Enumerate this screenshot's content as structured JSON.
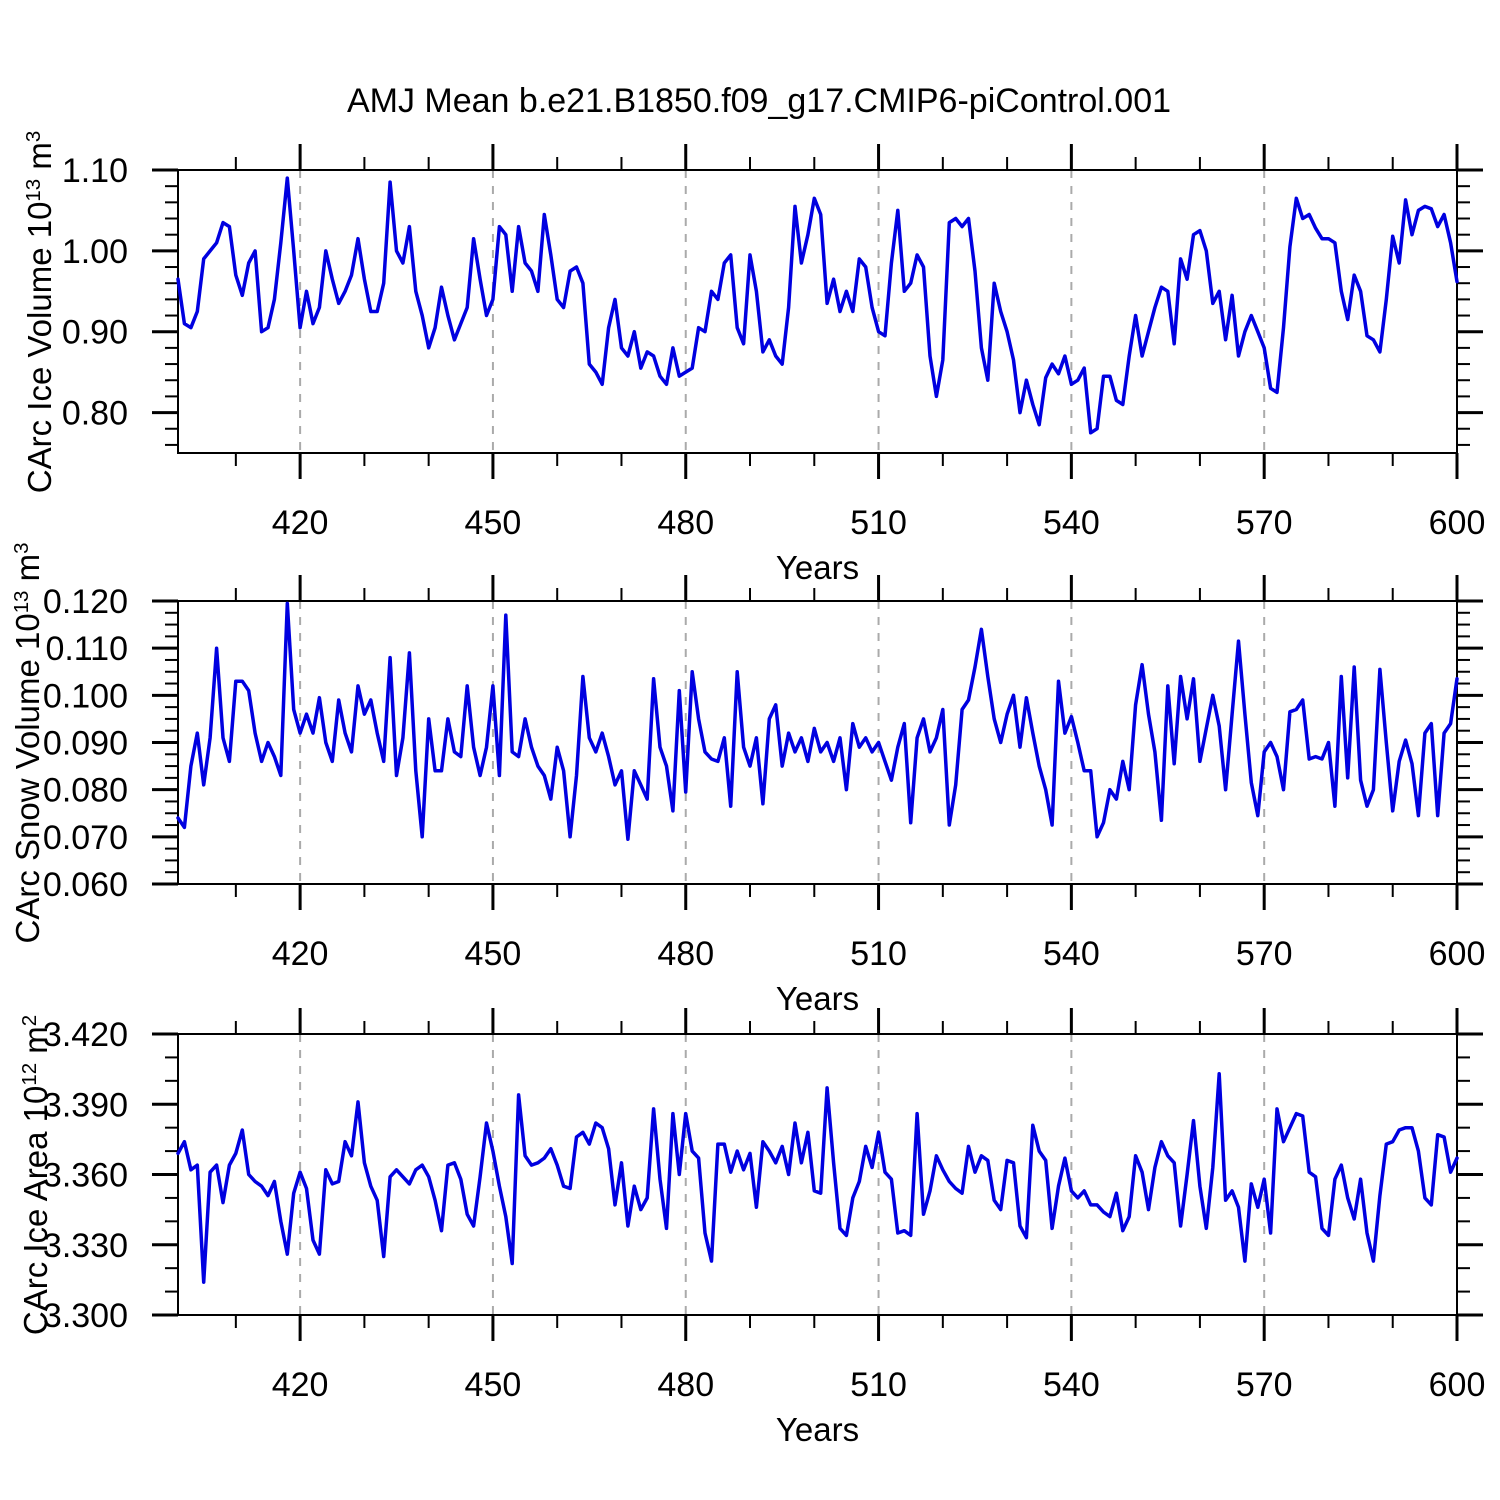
{
  "title": "AMJ Mean b.e21.B1850.f09_g17.CMIP6-piControl.001",
  "colors": {
    "line": "#0000e0",
    "axis": "#000000",
    "gridline": "#aaaaaa",
    "background": "#ffffff"
  },
  "years": [
    401,
    402,
    403,
    404,
    405,
    406,
    407,
    408,
    409,
    410,
    411,
    412,
    413,
    414,
    415,
    416,
    417,
    418,
    419,
    420,
    421,
    422,
    423,
    424,
    425,
    426,
    427,
    428,
    429,
    430,
    431,
    432,
    433,
    434,
    435,
    436,
    437,
    438,
    439,
    440,
    441,
    442,
    443,
    444,
    445,
    446,
    447,
    448,
    449,
    450,
    451,
    452,
    453,
    454,
    455,
    456,
    457,
    458,
    459,
    460,
    461,
    462,
    463,
    464,
    465,
    466,
    467,
    468,
    469,
    470,
    471,
    472,
    473,
    474,
    475,
    476,
    477,
    478,
    479,
    480,
    481,
    482,
    483,
    484,
    485,
    486,
    487,
    488,
    489,
    490,
    491,
    492,
    493,
    494,
    495,
    496,
    497,
    498,
    499,
    500,
    501,
    502,
    503,
    504,
    505,
    506,
    507,
    508,
    509,
    510,
    511,
    512,
    513,
    514,
    515,
    516,
    517,
    518,
    519,
    520,
    521,
    522,
    523,
    524,
    525,
    526,
    527,
    528,
    529,
    530,
    531,
    532,
    533,
    534,
    535,
    536,
    537,
    538,
    539,
    540,
    541,
    542,
    543,
    544,
    545,
    546,
    547,
    548,
    549,
    550,
    551,
    552,
    553,
    554,
    555,
    556,
    557,
    558,
    559,
    560,
    561,
    562,
    563,
    564,
    565,
    566,
    567,
    568,
    569,
    570,
    571,
    572,
    573,
    574,
    575,
    576,
    577,
    578,
    579,
    580,
    581,
    582,
    583,
    584,
    585,
    586,
    587,
    588,
    589,
    590,
    591,
    592,
    593,
    594,
    595,
    596,
    597,
    598,
    599,
    600
  ],
  "chart_data": [
    {
      "name": "carc-ice-volume",
      "type": "line",
      "xlabel": "Years",
      "ylabel": {
        "prefix": "CArc Ice Volume 10",
        "exp": "13",
        "unit": " m",
        "unit_exp": "3"
      },
      "xlim": [
        401,
        600
      ],
      "ylim": [
        0.75,
        1.1
      ],
      "xticks_major": [
        420,
        450,
        480,
        510,
        540,
        570,
        600
      ],
      "xminor_step": 10,
      "yticks_major": [
        0.8,
        0.9,
        1.0,
        1.1
      ],
      "ytick_labels": [
        "0.80",
        "0.90",
        "1.00",
        "1.10"
      ],
      "yminor_step": 0.02,
      "gridlines_x": [
        420,
        450,
        480,
        510,
        540,
        570
      ],
      "grid": "dashed-vertical",
      "legend": "none",
      "values": [
        0.965,
        0.91,
        0.905,
        0.925,
        0.99,
        1.0,
        1.01,
        1.035,
        1.03,
        0.97,
        0.945,
        0.985,
        1.0,
        0.9,
        0.905,
        0.94,
        1.01,
        1.09,
        1.0,
        0.905,
        0.95,
        0.91,
        0.93,
        1.0,
        0.965,
        0.935,
        0.95,
        0.97,
        1.015,
        0.965,
        0.925,
        0.925,
        0.96,
        1.085,
        1.0,
        0.985,
        1.03,
        0.95,
        0.92,
        0.88,
        0.905,
        0.955,
        0.92,
        0.89,
        0.91,
        0.93,
        1.015,
        0.965,
        0.92,
        0.94,
        1.03,
        1.02,
        0.95,
        1.03,
        0.985,
        0.975,
        0.95,
        1.045,
        0.995,
        0.94,
        0.93,
        0.975,
        0.98,
        0.96,
        0.86,
        0.85,
        0.835,
        0.905,
        0.94,
        0.88,
        0.87,
        0.9,
        0.855,
        0.875,
        0.87,
        0.845,
        0.835,
        0.88,
        0.845,
        0.85,
        0.855,
        0.905,
        0.9,
        0.95,
        0.94,
        0.985,
        0.995,
        0.905,
        0.885,
        0.995,
        0.95,
        0.875,
        0.89,
        0.87,
        0.86,
        0.93,
        1.055,
        0.985,
        1.02,
        1.065,
        1.045,
        0.935,
        0.965,
        0.925,
        0.95,
        0.925,
        0.99,
        0.98,
        0.93,
        0.9,
        0.895,
        0.985,
        1.05,
        0.95,
        0.96,
        0.995,
        0.98,
        0.87,
        0.82,
        0.865,
        1.035,
        1.04,
        1.03,
        1.04,
        0.975,
        0.88,
        0.84,
        0.96,
        0.925,
        0.9,
        0.865,
        0.8,
        0.84,
        0.81,
        0.785,
        0.843,
        0.86,
        0.848,
        0.87,
        0.835,
        0.84,
        0.855,
        0.775,
        0.78,
        0.845,
        0.845,
        0.815,
        0.81,
        0.87,
        0.92,
        0.87,
        0.9,
        0.93,
        0.955,
        0.95,
        0.885,
        0.99,
        0.965,
        1.02,
        1.025,
        1.0,
        0.935,
        0.95,
        0.89,
        0.945,
        0.87,
        0.9,
        0.92,
        0.9,
        0.88,
        0.83,
        0.825,
        0.905,
        1.005,
        1.065,
        1.04,
        1.045,
        1.028,
        1.015,
        1.015,
        1.01,
        0.95,
        0.915,
        0.97,
        0.95,
        0.895,
        0.89,
        0.875,
        0.94,
        1.018,
        0.985,
        1.063,
        1.02,
        1.05,
        1.055,
        1.052,
        1.03,
        1.045,
        1.01,
        0.962
      ]
    },
    {
      "name": "carc-snow-volume",
      "type": "line",
      "xlabel": "Years",
      "ylabel": {
        "prefix": "CArc Snow Volume 10",
        "exp": "13",
        "unit": " m",
        "unit_exp": "3"
      },
      "xlim": [
        401,
        600
      ],
      "ylim": [
        0.06,
        0.12
      ],
      "xticks_major": [
        420,
        450,
        480,
        510,
        540,
        570,
        600
      ],
      "xminor_step": 10,
      "yticks_major": [
        0.06,
        0.07,
        0.08,
        0.09,
        0.1,
        0.11,
        0.12
      ],
      "ytick_labels": [
        "0.060",
        "0.070",
        "0.080",
        "0.090",
        "0.100",
        "0.110",
        "0.120"
      ],
      "yminor_step": 0.0025,
      "gridlines_x": [
        420,
        450,
        480,
        510,
        540,
        570
      ],
      "grid": "dashed-vertical",
      "legend": "none",
      "values": [
        0.074,
        0.072,
        0.085,
        0.092,
        0.081,
        0.091,
        0.11,
        0.091,
        0.086,
        0.103,
        0.103,
        0.101,
        0.092,
        0.086,
        0.09,
        0.087,
        0.083,
        0.1195,
        0.097,
        0.092,
        0.096,
        0.092,
        0.0995,
        0.09,
        0.086,
        0.099,
        0.092,
        0.088,
        0.102,
        0.096,
        0.099,
        0.092,
        0.086,
        0.108,
        0.083,
        0.091,
        0.109,
        0.084,
        0.07,
        0.095,
        0.084,
        0.084,
        0.095,
        0.088,
        0.087,
        0.102,
        0.089,
        0.083,
        0.089,
        0.102,
        0.083,
        0.117,
        0.088,
        0.087,
        0.095,
        0.089,
        0.085,
        0.083,
        0.078,
        0.089,
        0.084,
        0.07,
        0.083,
        0.104,
        0.091,
        0.088,
        0.092,
        0.087,
        0.081,
        0.084,
        0.0695,
        0.084,
        0.081,
        0.078,
        0.1035,
        0.089,
        0.085,
        0.0755,
        0.101,
        0.0795,
        0.105,
        0.095,
        0.088,
        0.0865,
        0.086,
        0.091,
        0.0765,
        0.105,
        0.089,
        0.085,
        0.091,
        0.077,
        0.095,
        0.098,
        0.085,
        0.092,
        0.088,
        0.091,
        0.086,
        0.093,
        0.088,
        0.09,
        0.086,
        0.091,
        0.08,
        0.094,
        0.089,
        0.091,
        0.088,
        0.09,
        0.086,
        0.082,
        0.089,
        0.094,
        0.073,
        0.091,
        0.095,
        0.088,
        0.091,
        0.097,
        0.0725,
        0.081,
        0.097,
        0.099,
        0.106,
        0.114,
        0.104,
        0.095,
        0.09,
        0.096,
        0.1,
        0.089,
        0.0995,
        0.092,
        0.085,
        0.08,
        0.0725,
        0.103,
        0.092,
        0.0955,
        0.09,
        0.084,
        0.084,
        0.07,
        0.073,
        0.08,
        0.078,
        0.086,
        0.08,
        0.098,
        0.1065,
        0.096,
        0.088,
        0.0735,
        0.102,
        0.0855,
        0.104,
        0.095,
        0.1035,
        0.086,
        0.093,
        0.1,
        0.0935,
        0.08,
        0.096,
        0.1115,
        0.096,
        0.0815,
        0.0745,
        0.088,
        0.09,
        0.087,
        0.08,
        0.0965,
        0.097,
        0.099,
        0.0865,
        0.087,
        0.0865,
        0.09,
        0.0765,
        0.104,
        0.0825,
        0.106,
        0.082,
        0.0765,
        0.08,
        0.1055,
        0.09,
        0.0755,
        0.086,
        0.0905,
        0.0855,
        0.0745,
        0.092,
        0.094,
        0.0745,
        0.092,
        0.094,
        0.1035
      ]
    },
    {
      "name": "carc-ice-area",
      "type": "line",
      "xlabel": "Years",
      "ylabel": {
        "prefix": "CArc Ice Area 10",
        "exp": "12",
        "unit": " m",
        "unit_exp": "2"
      },
      "xlim": [
        401,
        600
      ],
      "ylim": [
        3.3,
        3.42
      ],
      "xticks_major": [
        420,
        450,
        480,
        510,
        540,
        570,
        600
      ],
      "xminor_step": 10,
      "yticks_major": [
        3.3,
        3.33,
        3.36,
        3.39,
        3.42
      ],
      "ytick_labels": [
        "3.300",
        "3.330",
        "3.360",
        "3.390",
        "3.420"
      ],
      "yminor_step": 0.01,
      "gridlines_x": [
        420,
        450,
        480,
        510,
        540,
        570
      ],
      "grid": "dashed-vertical",
      "legend": "none",
      "values": [
        3.369,
        3.374,
        3.362,
        3.364,
        3.314,
        3.361,
        3.364,
        3.348,
        3.364,
        3.369,
        3.379,
        3.36,
        3.357,
        3.355,
        3.351,
        3.357,
        3.34,
        3.326,
        3.352,
        3.361,
        3.354,
        3.332,
        3.326,
        3.362,
        3.356,
        3.357,
        3.374,
        3.368,
        3.391,
        3.365,
        3.355,
        3.349,
        3.325,
        3.359,
        3.362,
        3.359,
        3.356,
        3.362,
        3.364,
        3.359,
        3.349,
        3.336,
        3.364,
        3.365,
        3.358,
        3.343,
        3.338,
        3.359,
        3.382,
        3.37,
        3.355,
        3.342,
        3.322,
        3.394,
        3.368,
        3.364,
        3.365,
        3.367,
        3.371,
        3.364,
        3.355,
        3.354,
        3.376,
        3.378,
        3.373,
        3.382,
        3.38,
        3.371,
        3.347,
        3.365,
        3.338,
        3.355,
        3.345,
        3.35,
        3.388,
        3.358,
        3.337,
        3.386,
        3.36,
        3.386,
        3.37,
        3.367,
        3.335,
        3.323,
        3.373,
        3.373,
        3.361,
        3.37,
        3.362,
        3.369,
        3.346,
        3.374,
        3.37,
        3.365,
        3.372,
        3.36,
        3.382,
        3.365,
        3.378,
        3.353,
        3.352,
        3.397,
        3.365,
        3.337,
        3.334,
        3.35,
        3.357,
        3.372,
        3.363,
        3.378,
        3.361,
        3.358,
        3.335,
        3.336,
        3.334,
        3.386,
        3.343,
        3.353,
        3.368,
        3.362,
        3.357,
        3.354,
        3.352,
        3.372,
        3.361,
        3.368,
        3.366,
        3.349,
        3.345,
        3.366,
        3.365,
        3.338,
        3.333,
        3.381,
        3.37,
        3.366,
        3.337,
        3.355,
        3.367,
        3.353,
        3.35,
        3.353,
        3.347,
        3.347,
        3.344,
        3.342,
        3.352,
        3.336,
        3.342,
        3.368,
        3.361,
        3.345,
        3.363,
        3.374,
        3.368,
        3.365,
        3.338,
        3.36,
        3.383,
        3.355,
        3.337,
        3.363,
        3.403,
        3.349,
        3.353,
        3.346,
        3.323,
        3.356,
        3.346,
        3.358,
        3.335,
        3.388,
        3.374,
        3.38,
        3.386,
        3.385,
        3.361,
        3.359,
        3.337,
        3.334,
        3.358,
        3.364,
        3.35,
        3.341,
        3.358,
        3.335,
        3.323,
        3.351,
        3.373,
        3.374,
        3.379,
        3.38,
        3.38,
        3.37,
        3.35,
        3.347,
        3.377,
        3.376,
        3.361,
        3.367
      ]
    }
  ]
}
